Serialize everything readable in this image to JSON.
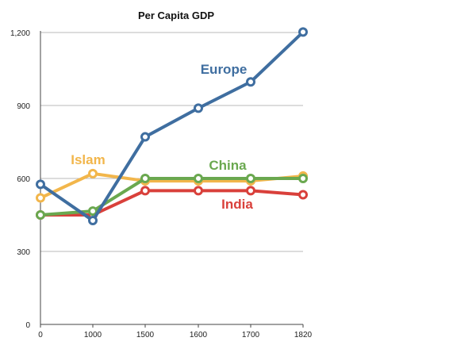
{
  "chart_data": {
    "type": "line",
    "title": "Per Capita GDP",
    "xlabel": "",
    "ylabel": "",
    "categories": [
      "0",
      "1000",
      "1500",
      "1600",
      "1700",
      "1820"
    ],
    "ylim": [
      0,
      1200
    ],
    "yticks": [
      0,
      300,
      600,
      900,
      1200
    ],
    "ytick_labels": [
      "0",
      "300",
      "600",
      "900",
      "1,200"
    ],
    "grid": true,
    "series": [
      {
        "name": "Islam",
        "color": "#f2b64b",
        "values": [
          520,
          620,
          590,
          590,
          590,
          610
        ]
      },
      {
        "name": "India",
        "color": "#d9403b",
        "values": [
          450,
          450,
          550,
          550,
          550,
          533
        ]
      },
      {
        "name": "China",
        "color": "#6aa84f",
        "values": [
          450,
          466,
          600,
          600,
          600,
          600
        ]
      },
      {
        "name": "Europe",
        "color": "#3f6ea0",
        "values": [
          576,
          427,
          771,
          889,
          997,
          1202
        ]
      }
    ]
  }
}
